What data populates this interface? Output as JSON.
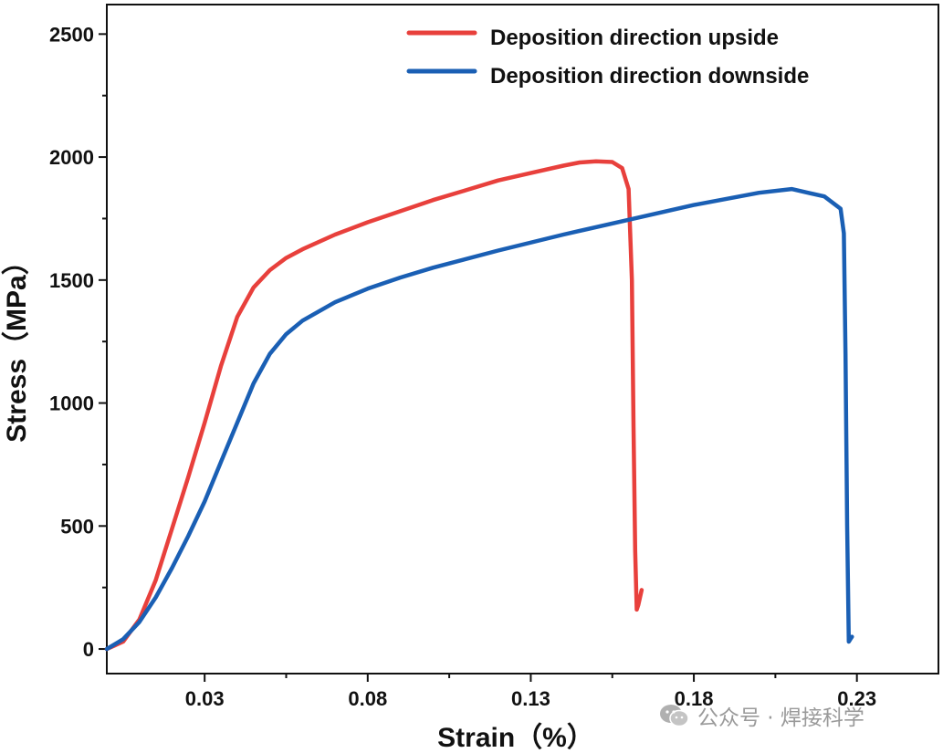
{
  "chart_data": {
    "type": "line",
    "title": "",
    "xlabel": "Strain（%）",
    "ylabel": "Stress（MPa）",
    "xlim": [
      0.0,
      0.255
    ],
    "ylim": [
      -100,
      2620
    ],
    "xticks": [
      0.03,
      0.08,
      0.13,
      0.18,
      0.23
    ],
    "xtick_labels": [
      "0.03",
      "0.08",
      "0.13",
      "0.18",
      "0.23"
    ],
    "yticks": [
      0,
      500,
      1000,
      1500,
      2000,
      2500
    ],
    "ytick_labels": [
      "0",
      "500",
      "1000",
      "1500",
      "2000",
      "2500"
    ],
    "grid": false,
    "legend_position": "top-right",
    "series": [
      {
        "name": "Deposition direction upside",
        "color": "#e8403c",
        "x": [
          0.0,
          0.005,
          0.01,
          0.015,
          0.02,
          0.025,
          0.03,
          0.035,
          0.04,
          0.045,
          0.05,
          0.055,
          0.06,
          0.07,
          0.08,
          0.09,
          0.1,
          0.11,
          0.12,
          0.13,
          0.14,
          0.145,
          0.15,
          0.155,
          0.158,
          0.16,
          0.161,
          0.1615,
          0.162,
          0.1625,
          0.163,
          0.164
        ],
        "y": [
          0,
          30,
          120,
          280,
          490,
          700,
          920,
          1150,
          1350,
          1470,
          1540,
          1590,
          1625,
          1685,
          1735,
          1780,
          1825,
          1865,
          1905,
          1935,
          1965,
          1978,
          1983,
          1980,
          1955,
          1870,
          1500,
          900,
          400,
          160,
          180,
          240
        ]
      },
      {
        "name": "Deposition direction downside",
        "color": "#1a5fb4",
        "x": [
          0.0,
          0.005,
          0.01,
          0.015,
          0.02,
          0.025,
          0.03,
          0.035,
          0.04,
          0.045,
          0.05,
          0.055,
          0.06,
          0.07,
          0.08,
          0.09,
          0.1,
          0.12,
          0.14,
          0.16,
          0.18,
          0.2,
          0.21,
          0.215,
          0.22,
          0.225,
          0.226,
          0.2265,
          0.227,
          0.2275,
          0.228,
          0.2285
        ],
        "y": [
          0,
          40,
          110,
          210,
          330,
          460,
          600,
          760,
          920,
          1080,
          1200,
          1280,
          1335,
          1410,
          1465,
          1510,
          1550,
          1620,
          1685,
          1745,
          1805,
          1855,
          1870,
          1855,
          1840,
          1790,
          1690,
          1200,
          500,
          30,
          40,
          50
        ]
      }
    ]
  },
  "watermark": {
    "icon": "wechat-icon",
    "text": "公众号 · 焊接科学"
  }
}
